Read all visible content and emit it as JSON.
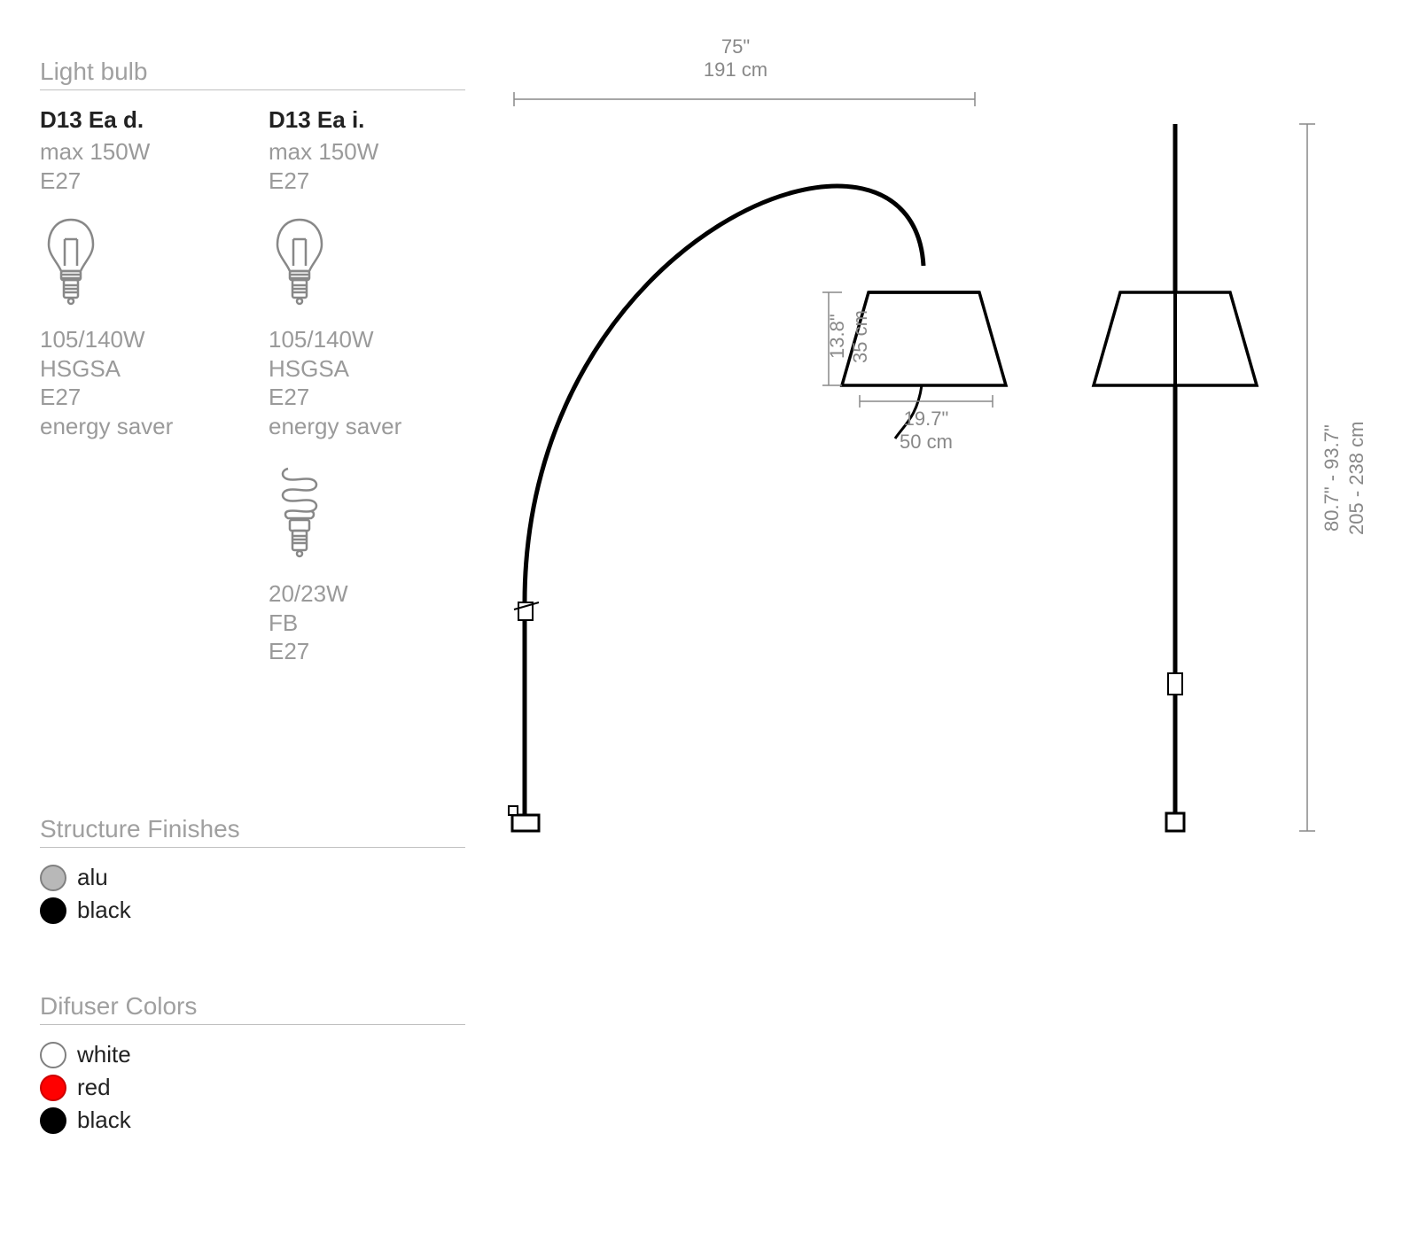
{
  "sections": {
    "lightbulb_title": "Light bulb",
    "finishes_title": "Structure Finishes",
    "diffuser_title": "Difuser Colors"
  },
  "bulbs": {
    "col1": {
      "model": "D13 Ea d.",
      "max": "max  150W",
      "socket1": "E27",
      "halogen_w": "105/140W",
      "halogen_type": "HSGSA",
      "halogen_socket": "E27",
      "halogen_note": "energy saver"
    },
    "col2": {
      "model": "D13 Ea i.",
      "max": "max  150W",
      "socket1": "E27",
      "halogen_w": "105/140W",
      "halogen_type": "HSGSA",
      "halogen_socket": "E27",
      "halogen_note": "energy saver",
      "cfl_w": "20/23W",
      "cfl_type": "FB",
      "cfl_socket": "E27"
    }
  },
  "finishes": [
    {
      "label": "alu",
      "fill": "#b8b8b8",
      "stroke": "#808080"
    },
    {
      "label": "black",
      "fill": "#000000",
      "stroke": "#000000"
    }
  ],
  "diffusers": [
    {
      "label": "white",
      "fill": "#ffffff",
      "stroke": "#808080"
    },
    {
      "label": "red",
      "fill": "#ff0000",
      "stroke": "#cc0000"
    },
    {
      "label": "black",
      "fill": "#000000",
      "stroke": "#000000"
    }
  ],
  "dimensions": {
    "width_in": "75\"",
    "width_cm": "191 cm",
    "shade_h_in": "13.8\"",
    "shade_h_cm": "35 cm",
    "shade_w_in": "19.7\"",
    "shade_w_cm": "50 cm",
    "height_in": "80.7\" - 93.7\"",
    "height_cm": "205 - 238 cm"
  },
  "style": {
    "line_color": "#000000",
    "dim_line_color": "#888888",
    "dim_text_color": "#888888",
    "icon_stroke": "#888888",
    "bulb_icon_stroke_width": 2.5,
    "diagram_stroke_width": 4
  }
}
